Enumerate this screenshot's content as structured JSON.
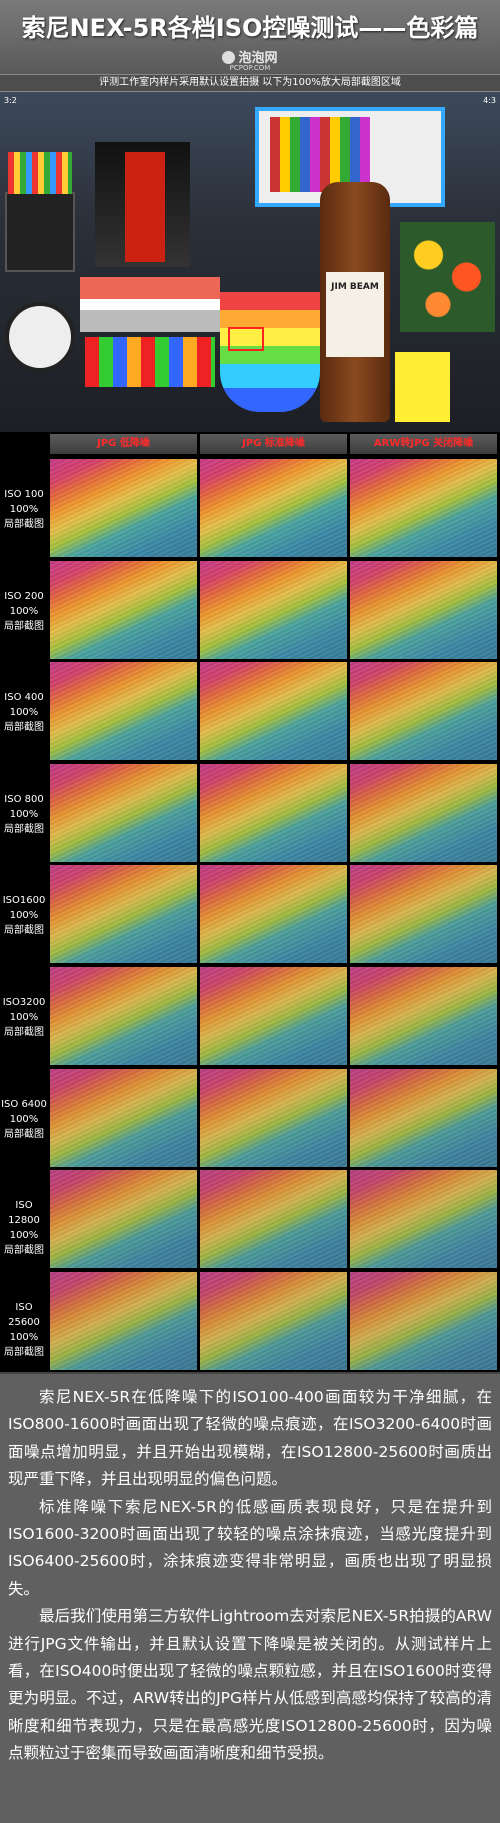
{
  "header": {
    "title": "索尼NEX-5R各档ISO控噪测试——色彩篇",
    "logo_text": "泡泡网",
    "logo_sub": "PCPOP.COM"
  },
  "subtitle": "评测工作室内样片采用默认设置拍摄 以下为100%放大局部截图区域",
  "scene": {
    "corner_left": "3:2",
    "corner_right": "4:3",
    "bottle_label": "JIM BEAM"
  },
  "columns": [
    "JPG 低降噪",
    "JPG 标准降噪",
    "ARW转JPG 关闭降噪"
  ],
  "rows": [
    {
      "iso": "ISO 100",
      "pct": "100%",
      "note": "局部截图"
    },
    {
      "iso": "ISO 200",
      "pct": "100%",
      "note": "局部截图"
    },
    {
      "iso": "ISO 400",
      "pct": "100%",
      "note": "局部截图"
    },
    {
      "iso": "ISO 800",
      "pct": "100%",
      "note": "局部截图"
    },
    {
      "iso": "ISO1600",
      "pct": "100%",
      "note": "局部截图"
    },
    {
      "iso": "ISO3200",
      "pct": "100%",
      "note": "局部截图"
    },
    {
      "iso": "ISO 6400",
      "pct": "100%",
      "note": "局部截图"
    },
    {
      "iso": "ISO 12800",
      "pct": "100%",
      "note": "局部截图"
    },
    {
      "iso": "ISO 25600",
      "pct": "100%",
      "note": "局部截图"
    }
  ],
  "text": {
    "p1": "索尼NEX-5R在低降噪下的ISO100-400画面较为干净细腻，在ISO800-1600时画面出现了轻微的噪点痕迹，在ISO3200-6400时画面噪点增加明显，并且开始出现模糊，在ISO12800-25600时画质出现严重下降，并且出现明显的偏色问题。",
    "p2": "标准降噪下索尼NEX-5R的低感画质表现良好，只是在提升到ISO1600-3200时画面出现了较轻的噪点涂抹痕迹，当感光度提升到ISO6400-25600时，涂抹痕迹变得非常明显，画质也出现了明显损失。",
    "p3": "最后我们使用第三方软件Lightroom去对索尼NEX-5R拍摄的ARW进行JPG文件输出，并且默认设置下降噪是被关闭的。从测试样片上看，在ISO400时便出现了轻微的噪点颗粒感，并且在ISO1600时变得更为明显。不过，ARW转出的JPG样片从低感到高感均保持了较高的清晰度和细节表现力，只是在最高感光度ISO12800-25600时，因为噪点颗粒过于密集而导致画面清晰度和细节受损。"
  }
}
